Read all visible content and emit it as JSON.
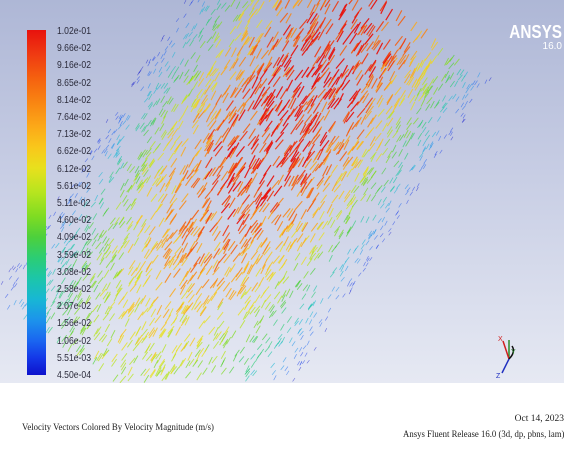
{
  "legend": {
    "labels": [
      "1.02e-01",
      "9.66e-02",
      "9.16e-02",
      "8.65e-02",
      "8.14e-02",
      "7.64e-02",
      "7.13e-02",
      "6.62e-02",
      "6.12e-02",
      "5.61e-02",
      "5.11e-02",
      "4.60e-02",
      "4.09e-02",
      "3.59e-02",
      "3.08e-02",
      "2.58e-02",
      "2.07e-02",
      "1.56e-02",
      "1.06e-02",
      "5.51e-03",
      "4.50e-04"
    ]
  },
  "brand": {
    "name": "ANSYS",
    "version": "16.0"
  },
  "axes": {
    "x": "X",
    "y": "Y",
    "z": "Z"
  },
  "caption": {
    "title": "Velocity Vectors Colored By Velocity Magnitude (m/s)",
    "date": "Oct 14, 2023",
    "release": "Ansys Fluent Release 16.0 (3d, dp, pbns, lam)"
  }
}
